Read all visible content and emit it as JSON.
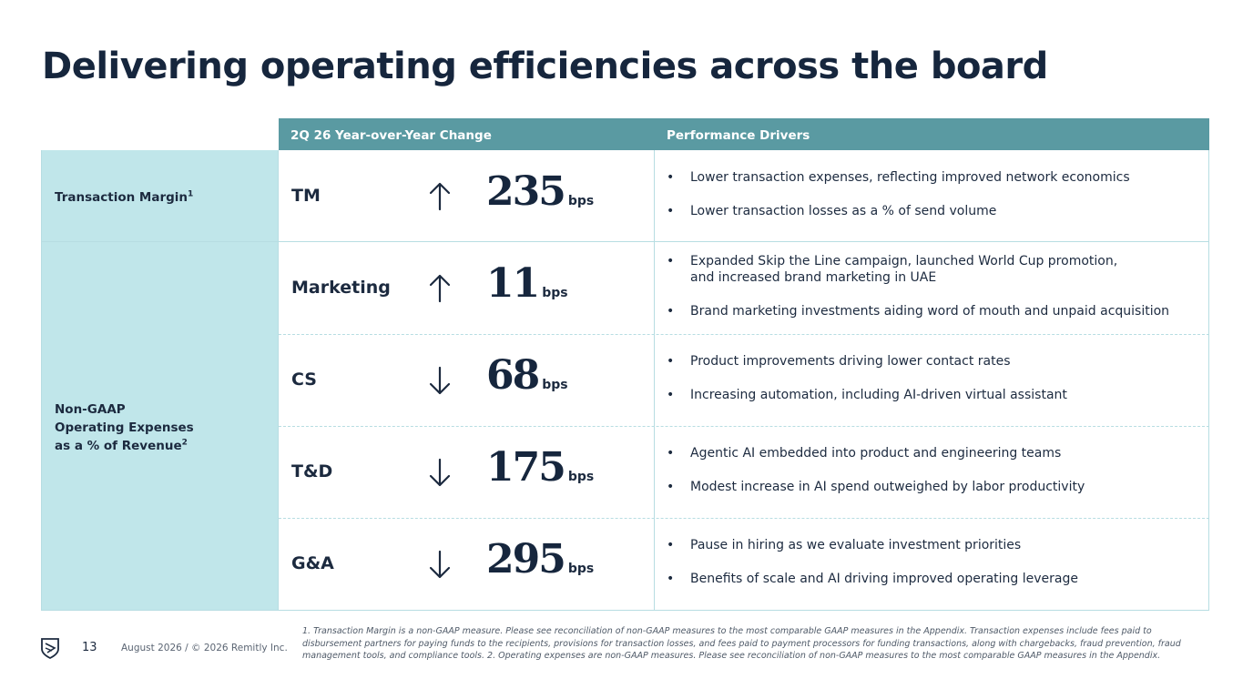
{
  "title": "Delivering operating efficiencies across the board",
  "table": {
    "col_change_header": "2Q 26 Year-over-Year Change",
    "col_drivers_header": "Performance Drivers",
    "categories": [
      {
        "label": "Transaction Margin",
        "footnote_mark": "1"
      },
      {
        "label": "Non-GAAP\nOperating Expenses\nas a % of Revenue",
        "footnote_mark": "2"
      }
    ],
    "rows": [
      {
        "metric": "TM",
        "direction": "up",
        "value": "235",
        "unit": "bps",
        "drivers": [
          "Lower transaction expenses, reflecting improved network economics",
          "Lower transaction losses as a % of send volume"
        ]
      },
      {
        "metric": "Marketing",
        "direction": "up",
        "value": "11",
        "unit": "bps",
        "drivers": [
          "Expanded Skip the Line campaign, launched World Cup promotion,\nand increased brand marketing in UAE",
          "Brand marketing investments aiding word of mouth and unpaid acquisition"
        ]
      },
      {
        "metric": "CS",
        "direction": "down",
        "value": "68",
        "unit": "bps",
        "drivers": [
          "Product improvements driving lower contact rates",
          "Increasing automation, including AI-driven virtual assistant"
        ]
      },
      {
        "metric": "T&D",
        "direction": "down",
        "value": "175",
        "unit": "bps",
        "drivers": [
          "Agentic AI embedded into product and engineering teams",
          "Modest increase in AI spend outweighed by labor productivity"
        ]
      },
      {
        "metric": "G&A",
        "direction": "down",
        "value": "295",
        "unit": "bps",
        "drivers": [
          "Pause in hiring as we evaluate investment priorities",
          "Benefits of scale and AI driving improved operating leverage"
        ]
      }
    ]
  },
  "footer": {
    "logo_icon": "remitly-shield-icon",
    "page_number": "13",
    "copyright": "August 2026 / © 2026 Remitly Inc.",
    "footnote": "1. Transaction Margin  is a non-GAAP measure. Please see reconciliation of non-GAAP measures to the most comparable GAAP measures in the Appendix. Transaction expenses include fees paid to disbursement partners for paying funds to the recipients, provisions for transaction losses, and fees paid to payment processors for funding transactions, along with chargebacks, fraud prevention, fraud management tools, and compliance tools. 2. Operating expenses are non-GAAP measures. Please see reconciliation of non-GAAP measures to the most comparable GAAP measures in the Appendix."
  },
  "colors": {
    "header_bar": "#5a9aa2",
    "category_fill": "#c0e6ea",
    "text_dark": "#16263d"
  }
}
